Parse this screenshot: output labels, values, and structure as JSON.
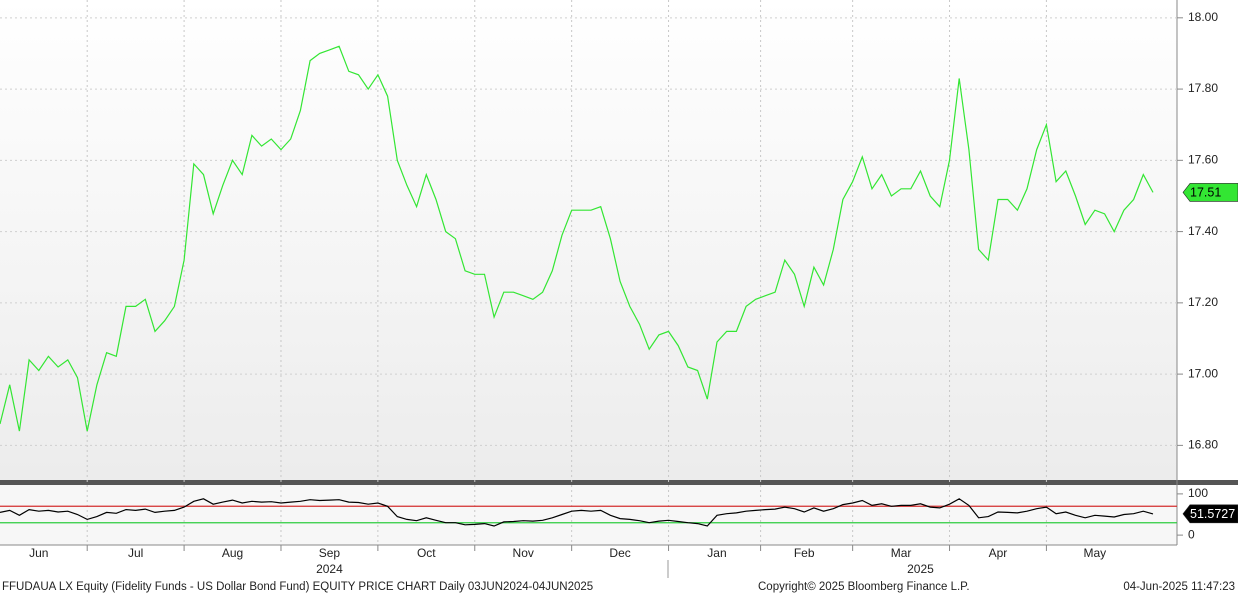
{
  "chart_data": [
    {
      "type": "line",
      "categories": [
        null,
        null,
        null,
        null,
        "Jun",
        null,
        null,
        null,
        null,
        null,
        null,
        null,
        null,
        null,
        "Jul",
        null,
        null,
        null,
        null,
        null,
        null,
        null,
        null,
        null,
        "Aug",
        null,
        null,
        null,
        null,
        null,
        null,
        null,
        null,
        null,
        "Sep",
        null,
        null,
        null,
        null,
        null,
        null,
        null,
        null,
        null,
        "Oct",
        null,
        null,
        null,
        null,
        null,
        null,
        null,
        null,
        null,
        "Nov",
        null,
        null,
        null,
        null,
        null,
        null,
        null,
        null,
        null,
        "Dec",
        null,
        null,
        null,
        null,
        null,
        null,
        null,
        null,
        null,
        "Jan",
        null,
        null,
        null,
        null,
        null,
        null,
        null,
        null,
        "Feb",
        null,
        null,
        null,
        null,
        null,
        null,
        null,
        null,
        null,
        "Mar",
        null,
        null,
        null,
        null,
        null,
        null,
        null,
        null,
        null,
        "Apr",
        null,
        null,
        null,
        null,
        null,
        null,
        null,
        null,
        null,
        "May",
        null,
        null,
        null,
        null,
        null,
        null
      ],
      "x_group_labels": [
        null,
        null,
        null,
        null,
        null,
        null,
        null,
        null,
        null,
        null,
        null,
        null,
        null,
        null,
        null,
        null,
        null,
        null,
        null,
        null,
        null,
        null,
        null,
        null,
        null,
        null,
        null,
        null,
        null,
        null,
        null,
        null,
        null,
        null,
        "2024",
        null,
        null,
        null,
        null,
        null,
        null,
        null,
        null,
        null,
        null,
        null,
        null,
        null,
        null,
        null,
        null,
        null,
        null,
        null,
        null,
        null,
        null,
        null,
        null,
        null,
        null,
        null,
        null,
        null,
        null,
        null,
        null,
        null,
        null,
        null,
        null,
        null,
        null,
        null,
        null,
        null,
        null,
        null,
        null,
        null,
        null,
        null,
        null,
        null,
        null,
        null,
        null,
        null,
        null,
        null,
        null,
        null,
        null,
        null,
        null,
        "2025",
        null,
        null,
        null,
        null,
        null,
        null,
        null,
        null,
        null,
        null,
        null,
        null,
        null,
        null,
        null,
        null,
        null,
        null,
        null,
        null,
        null,
        null,
        null,
        null
      ],
      "series": [
        {
          "color": "#33e633",
          "values": [
            16.86,
            16.97,
            16.84,
            17.04,
            17.01,
            17.05,
            17.02,
            17.04,
            16.99,
            16.84,
            16.97,
            17.06,
            17.05,
            17.19,
            17.19,
            17.21,
            17.12,
            17.15,
            17.19,
            17.32,
            17.59,
            17.56,
            17.45,
            17.53,
            17.6,
            17.56,
            17.67,
            17.64,
            17.66,
            17.63,
            17.66,
            17.74,
            17.88,
            17.9,
            17.91,
            17.92,
            17.85,
            17.84,
            17.8,
            17.84,
            17.78,
            17.6,
            17.53,
            17.47,
            17.56,
            17.49,
            17.4,
            17.38,
            17.29,
            17.28,
            17.28,
            17.16,
            17.23,
            17.23,
            17.22,
            17.21,
            17.23,
            17.29,
            17.39,
            17.46,
            17.46,
            17.46,
            17.47,
            17.38,
            17.26,
            17.19,
            17.14,
            17.07,
            17.11,
            17.12,
            17.08,
            17.02,
            17.01,
            16.93,
            17.09,
            17.12,
            17.12,
            17.19,
            17.21,
            17.22,
            17.23,
            17.32,
            17.28,
            17.19,
            17.3,
            17.25,
            17.35,
            17.49,
            17.54,
            17.61,
            17.52,
            17.56,
            17.5,
            17.52,
            17.52,
            17.57,
            17.5,
            17.47,
            17.6,
            17.83,
            17.63,
            17.35,
            17.32,
            17.49,
            17.49,
            17.46,
            17.52,
            17.63,
            17.7,
            17.54,
            17.57,
            17.5,
            17.42,
            17.46,
            17.45,
            17.4,
            17.46,
            17.49,
            17.56,
            17.51
          ]
        }
      ],
      "ylim": [
        16.7,
        18.05
      ],
      "yticks": [
        {
          "value": 16.8,
          "label": "16.80"
        },
        {
          "value": 17,
          "label": "17.00"
        },
        {
          "value": 17.2,
          "label": "17.20"
        },
        {
          "value": 17.4,
          "label": "17.40"
        },
        {
          "value": 17.6,
          "label": "17.60"
        },
        {
          "value": 17.8,
          "label": "17.80"
        },
        {
          "value": 18,
          "label": "18.00"
        }
      ],
      "grid": true
    },
    {
      "type": "line",
      "series": [
        {
          "color": "#000000",
          "values": [
            55,
            60,
            48,
            62,
            58,
            60,
            56,
            58,
            50,
            38,
            45,
            55,
            53,
            62,
            60,
            63,
            55,
            58,
            60,
            68,
            82,
            88,
            75,
            80,
            85,
            78,
            82,
            80,
            81,
            78,
            80,
            82,
            86,
            84,
            85,
            86,
            80,
            79,
            75,
            78,
            70,
            45,
            38,
            35,
            42,
            36,
            30,
            30,
            25,
            26,
            28,
            22,
            32,
            33,
            35,
            34,
            36,
            42,
            50,
            58,
            60,
            58,
            60,
            48,
            40,
            38,
            35,
            30,
            34,
            36,
            33,
            30,
            28,
            22,
            48,
            52,
            54,
            58,
            60,
            62,
            63,
            68,
            64,
            56,
            66,
            58,
            64,
            74,
            78,
            84,
            72,
            76,
            70,
            72,
            72,
            76,
            68,
            66,
            75,
            88,
            72,
            42,
            45,
            56,
            55,
            54,
            58,
            64,
            68,
            52,
            56,
            48,
            42,
            48,
            46,
            44,
            50,
            52,
            58,
            51.5727
          ]
        }
      ],
      "ylim": [
        -24,
        124
      ],
      "yticks": [
        0,
        100
      ],
      "levels": [
        {
          "value": 70,
          "color": "#d32f2f"
        },
        {
          "value": 30,
          "color": "#2ecc40"
        }
      ]
    }
  ],
  "footer": {
    "left": "FFUDAUA LX Equity (Fidelity Funds - US Dollar Bond Fund) EQUITY PRICE CHART  Daily 03JUN2024-04JUN2025",
    "center": "Copyright© 2025 Bloomberg Finance L.P.",
    "right": "04-Jun-2025 11:47:23"
  }
}
